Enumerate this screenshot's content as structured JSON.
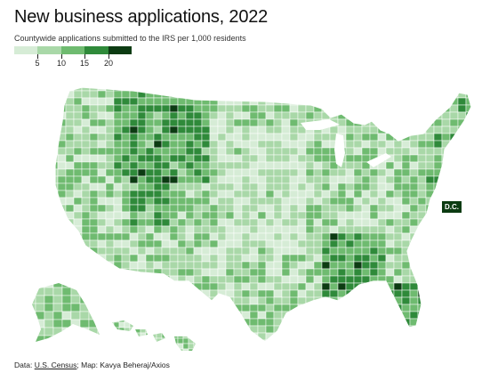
{
  "header": {
    "title": "New business applications, 2022",
    "subtitle": "Countywide applications submitted to the IRS per 1,000 residents"
  },
  "legend": {
    "ticks": [
      "5",
      "10",
      "15",
      "20"
    ],
    "colors": [
      "#d6ecd6",
      "#a9d8a8",
      "#6fbb70",
      "#2f8a3a",
      "#0c3b12"
    ]
  },
  "callout": {
    "dc": "D.C."
  },
  "source": {
    "prefix": "Data: ",
    "link": "U.S. Census",
    "suffix": "; Map: Kavya Beheraj/Axios"
  },
  "colors": {
    "background": "#ffffff",
    "county_border": "#ffffff"
  }
}
